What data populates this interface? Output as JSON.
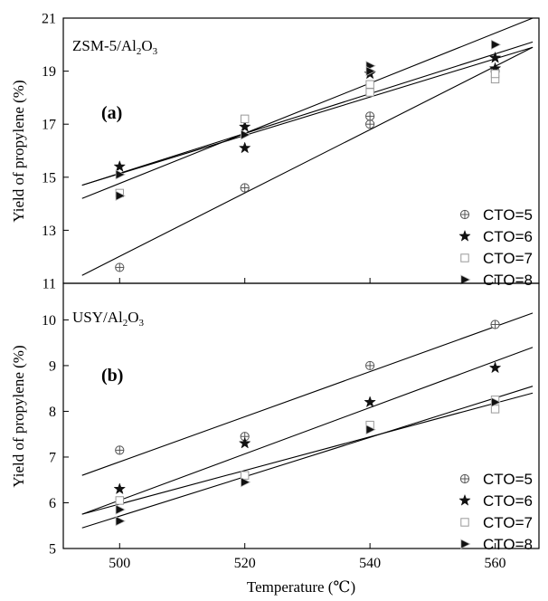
{
  "chart_data": [
    {
      "type": "scatter",
      "panel_label": "(a)",
      "title_main": "ZSM-5/Al",
      "title_sub1": "2",
      "title_mid": "O",
      "title_sub2": "3",
      "xlabel": "",
      "ylabel": "Yield of propylene (%)",
      "xlim": [
        491,
        567
      ],
      "ylim": [
        11,
        21
      ],
      "xticks": [
        500,
        520,
        540,
        560
      ],
      "yticks": [
        11,
        13,
        15,
        17,
        19,
        21
      ],
      "legend_position": "bottom-right",
      "series": [
        {
          "name": "CTO=5",
          "marker": "circle-plus",
          "points": [
            [
              500,
              11.6
            ],
            [
              520,
              14.6
            ],
            [
              540,
              17.0
            ],
            [
              540,
              17.3
            ],
            [
              560,
              19.0
            ]
          ],
          "fit": [
            [
              494,
              11.3
            ],
            [
              566,
              19.9
            ]
          ]
        },
        {
          "name": "CTO=6",
          "marker": "star",
          "points": [
            [
              500,
              15.4
            ],
            [
              520,
              16.1
            ],
            [
              520,
              16.9
            ],
            [
              540,
              18.9
            ],
            [
              560,
              19.5
            ],
            [
              560,
              19.1
            ]
          ],
          "fit": [
            [
              494,
              14.2
            ],
            [
              566,
              21.0
            ]
          ]
        },
        {
          "name": "CTO=7",
          "marker": "square",
          "points": [
            [
              500,
              14.4
            ],
            [
              520,
              17.2
            ],
            [
              540,
              18.5
            ],
            [
              540,
              18.2
            ],
            [
              560,
              18.7
            ],
            [
              560,
              18.9
            ]
          ],
          "fit": [
            [
              494,
              14.7
            ],
            [
              566,
              19.9
            ]
          ]
        },
        {
          "name": "CTO=8",
          "marker": "triangle-right",
          "points": [
            [
              500,
              14.3
            ],
            [
              500,
              15.1
            ],
            [
              520,
              16.6
            ],
            [
              540,
              19.2
            ],
            [
              540,
              19.0
            ],
            [
              560,
              20.0
            ]
          ],
          "fit": [
            [
              494,
              14.7
            ],
            [
              566,
              20.1
            ]
          ]
        }
      ]
    },
    {
      "type": "scatter",
      "panel_label": "(b)",
      "title_main": "USY/Al",
      "title_sub1": "2",
      "title_mid": "O",
      "title_sub2": "3",
      "xlabel": "Temperature (℃)",
      "ylabel": "Yield of propylene (%)",
      "xlim": [
        491,
        567
      ],
      "ylim": [
        5,
        10.8
      ],
      "xticks": [
        500,
        520,
        540,
        560
      ],
      "yticks": [
        5,
        6,
        7,
        8,
        9,
        10
      ],
      "legend_position": "bottom-right",
      "series": [
        {
          "name": "CTO=5",
          "marker": "circle-plus",
          "points": [
            [
              500,
              7.15
            ],
            [
              520,
              7.45
            ],
            [
              540,
              9.0
            ],
            [
              560,
              9.9
            ]
          ],
          "fit": [
            [
              494,
              6.6
            ],
            [
              566,
              10.15
            ]
          ]
        },
        {
          "name": "CTO=6",
          "marker": "star",
          "points": [
            [
              500,
              6.3
            ],
            [
              520,
              7.3
            ],
            [
              540,
              8.2
            ],
            [
              560,
              8.95
            ]
          ],
          "fit": [
            [
              494,
              5.75
            ],
            [
              566,
              9.4
            ]
          ]
        },
        {
          "name": "CTO=7",
          "marker": "square",
          "points": [
            [
              500,
              6.05
            ],
            [
              520,
              6.6
            ],
            [
              540,
              7.7
            ],
            [
              560,
              8.05
            ],
            [
              560,
              8.25
            ]
          ],
          "fit": [
            [
              494,
              5.75
            ],
            [
              566,
              8.4
            ]
          ]
        },
        {
          "name": "CTO=8",
          "marker": "triangle-right",
          "points": [
            [
              500,
              5.6
            ],
            [
              500,
              5.85
            ],
            [
              520,
              6.45
            ],
            [
              540,
              7.6
            ],
            [
              560,
              8.2
            ]
          ],
          "fit": [
            [
              494,
              5.45
            ],
            [
              566,
              8.55
            ]
          ]
        }
      ]
    }
  ]
}
